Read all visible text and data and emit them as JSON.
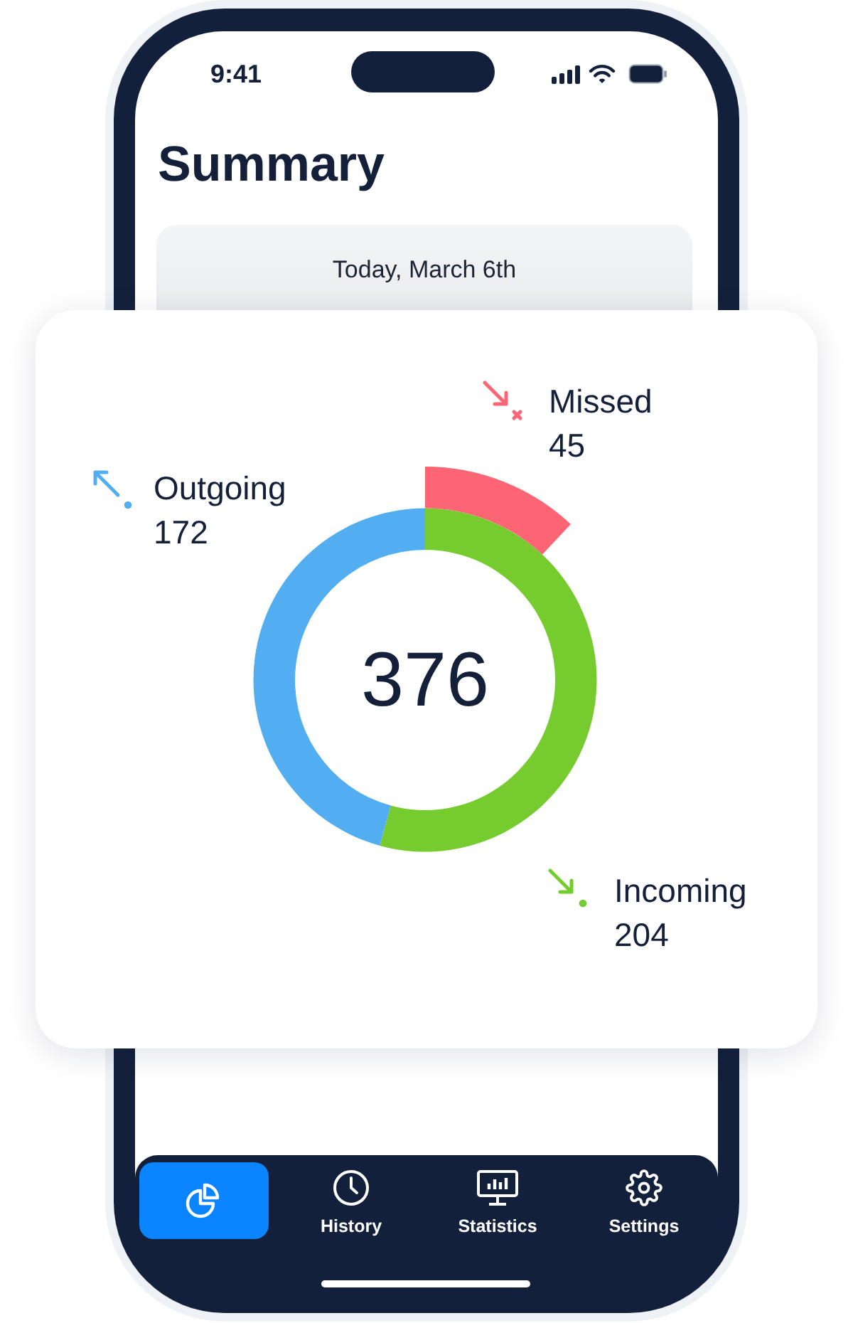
{
  "chart_data": [
    {
      "type": "donut",
      "title": "Summary",
      "subtitle": "Today, March 6th",
      "categories": [
        "Incoming",
        "Outgoing"
      ],
      "values": [
        204,
        172
      ],
      "colors": [
        "#76cc2e",
        "#52aef0"
      ],
      "data_labels": true,
      "legend": "right",
      "annotations": [
        "376",
        "9:41",
        "History",
        "Statistics",
        "Settings"
      ]
    },
    {
      "type": "other",
      "categories": [
        "Missed"
      ],
      "values": [
        45
      ],
      "colors": [
        "#fd6474"
      ],
      "data_labels": true
    }
  ]
}
